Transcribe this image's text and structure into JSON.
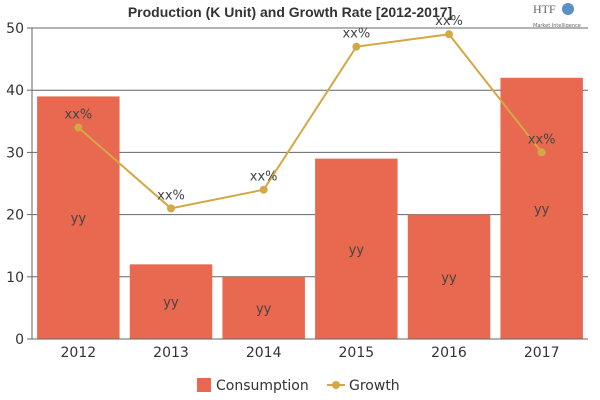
{
  "chart_data": {
    "type": "bar",
    "title": "Production (K Unit) and Growth Rate [2012-2017]",
    "logo_text": "HTF Market Intelligence",
    "categories": [
      "2012",
      "2013",
      "2014",
      "2015",
      "2016",
      "2017"
    ],
    "series": [
      {
        "name": "Consumption",
        "type": "bar",
        "color": "#E8694F",
        "values": [
          39,
          12,
          10,
          29,
          20,
          42
        ],
        "data_labels": [
          "yy",
          "yy",
          "yy",
          "yy",
          "yy",
          "yy"
        ]
      },
      {
        "name": "Growth",
        "type": "line",
        "color": "#D4A846",
        "values": [
          34,
          21,
          24,
          47,
          49,
          30
        ],
        "data_labels": [
          "xx%",
          "xx%",
          "xx%",
          "xx%",
          "xx%",
          "xx%"
        ]
      }
    ],
    "ylim": [
      0,
      50
    ],
    "yticks": [
      0,
      10,
      20,
      30,
      40,
      50
    ],
    "grid": true,
    "legend_position": "bottom"
  }
}
